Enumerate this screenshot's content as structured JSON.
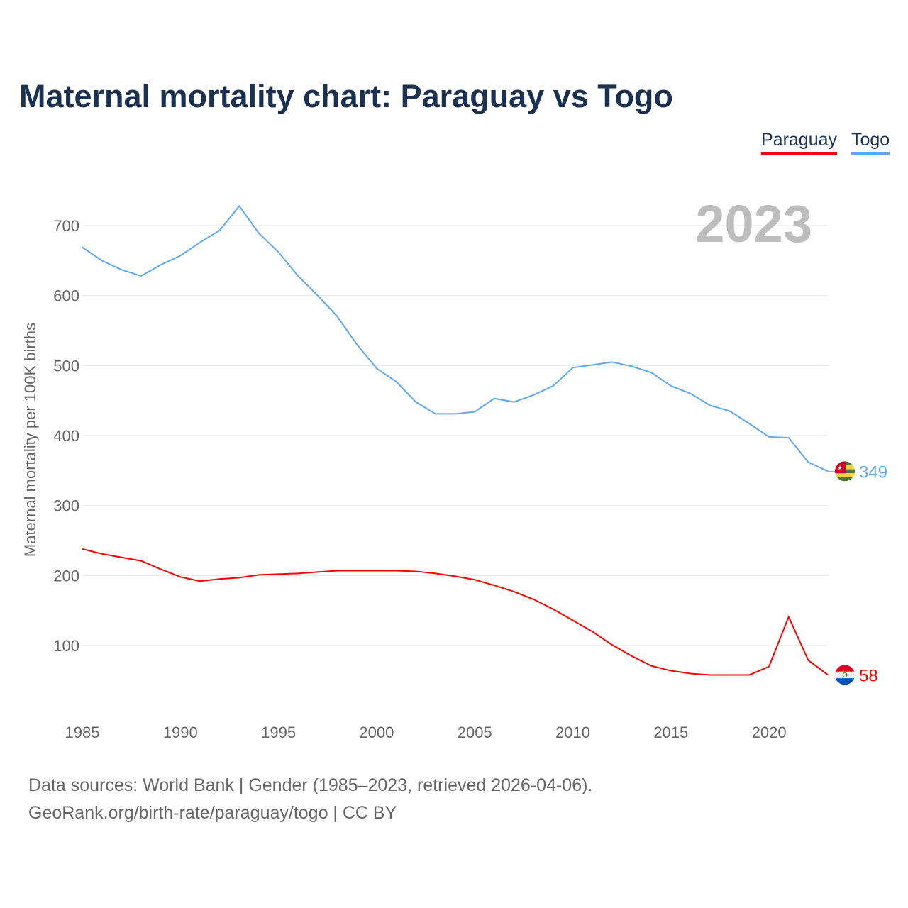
{
  "title": "Maternal mortality chart: Paraguay vs Togo",
  "legend": [
    {
      "name": "Paraguay",
      "color": "#ff0000"
    },
    {
      "name": "Togo",
      "color": "#5ea8ee"
    }
  ],
  "footer": {
    "line1": "Data sources: World Bank | Gender (1985–2023, retrieved 2026-04-06).",
    "line2": "GeoRank.org/birth-rate/paraguay/togo | CC BY"
  },
  "chart_data": {
    "type": "line",
    "title": "Maternal mortality chart: Paraguay vs Togo",
    "ylabel": "Maternal mortality per 100K births",
    "xlabel": "",
    "year_label": "2023",
    "xlim": [
      1985,
      2023
    ],
    "ylim": [
      0,
      750
    ],
    "xticks": [
      1985,
      1990,
      1995,
      2000,
      2005,
      2010,
      2015,
      2020
    ],
    "yticks": [
      100,
      200,
      300,
      400,
      500,
      600,
      700
    ],
    "grid": true,
    "legend_placement": "top-right",
    "x": [
      1985,
      1986,
      1987,
      1988,
      1989,
      1990,
      1991,
      1992,
      1993,
      1994,
      1995,
      1996,
      1997,
      1998,
      1999,
      2000,
      2001,
      2002,
      2003,
      2004,
      2005,
      2006,
      2007,
      2008,
      2009,
      2010,
      2011,
      2012,
      2013,
      2014,
      2015,
      2016,
      2017,
      2018,
      2019,
      2020,
      2021,
      2022,
      2023
    ],
    "series": [
      {
        "name": "Paraguay",
        "color": "#ff0000",
        "end_label": "58",
        "values": [
          238,
          231,
          226,
          221,
          209,
          198,
          192,
          195,
          197,
          201,
          202,
          203,
          205,
          207,
          207,
          207,
          207,
          206,
          203,
          199,
          194,
          186,
          177,
          166,
          152,
          136,
          120,
          101,
          85,
          71,
          64,
          60,
          58,
          58,
          58,
          70,
          141,
          79,
          58
        ]
      },
      {
        "name": "Togo",
        "color": "#5ea8ee",
        "end_label": "349",
        "values": [
          669,
          650,
          637,
          628,
          644,
          657,
          676,
          693,
          728,
          689,
          662,
          628,
          600,
          570,
          530,
          496,
          477,
          448,
          431,
          431,
          434,
          453,
          448,
          458,
          471,
          497,
          501,
          505,
          499,
          490,
          471,
          460,
          443,
          435,
          417,
          398,
          397,
          362,
          349
        ]
      }
    ]
  }
}
